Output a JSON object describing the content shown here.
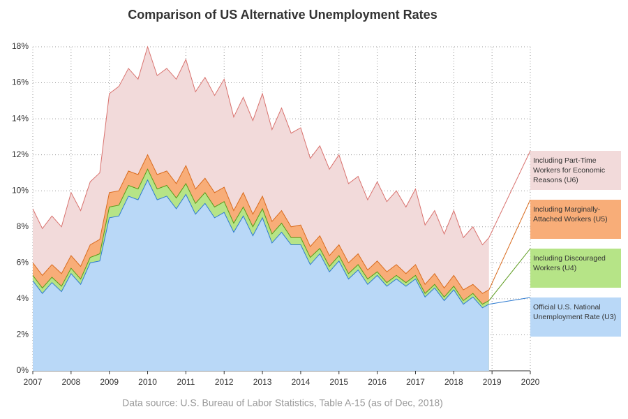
{
  "chart_data": {
    "type": "area",
    "title": "Comparison of US Alternative Unemployment Rates",
    "source": "Data source: U.S. Bureau of Labor Statistics, Table A-15 (as of Dec, 2018)",
    "x": [
      2007,
      2007.25,
      2007.5,
      2007.75,
      2008,
      2008.25,
      2008.5,
      2008.75,
      2009,
      2009.25,
      2009.5,
      2009.75,
      2010,
      2010.25,
      2010.5,
      2010.75,
      2011,
      2011.25,
      2011.5,
      2011.75,
      2012,
      2012.25,
      2012.5,
      2012.75,
      2013,
      2013.25,
      2013.5,
      2013.75,
      2014,
      2014.25,
      2014.5,
      2014.75,
      2015,
      2015.25,
      2015.5,
      2015.75,
      2016,
      2016.25,
      2016.5,
      2016.75,
      2017,
      2017.25,
      2017.5,
      2017.75,
      2018,
      2018.25,
      2018.5,
      2018.75,
      2018.92
    ],
    "series": [
      {
        "name": "Including Part-Time Workers for Economic Reasons (U6)",
        "color": "#f2dada",
        "line": "#d9726e",
        "values": [
          9.0,
          7.9,
          8.6,
          8.0,
          9.9,
          8.9,
          10.5,
          11.0,
          15.4,
          15.8,
          16.8,
          16.2,
          18.0,
          16.4,
          16.8,
          16.2,
          17.3,
          15.5,
          16.3,
          15.3,
          16.2,
          14.1,
          15.2,
          13.9,
          15.4,
          13.4,
          14.6,
          13.2,
          13.5,
          11.8,
          12.5,
          11.2,
          12.0,
          10.4,
          10.8,
          9.5,
          10.5,
          9.4,
          10.0,
          9.1,
          10.1,
          8.1,
          8.9,
          7.6,
          8.9,
          7.4,
          8.0,
          7.0,
          7.4
        ]
      },
      {
        "name": "Including Marginally-Attached Workers (U5)",
        "color": "#f8ad78",
        "line": "#d96b1e",
        "values": [
          6.0,
          5.3,
          5.9,
          5.4,
          6.4,
          5.8,
          7.0,
          7.3,
          9.9,
          10.0,
          11.1,
          10.9,
          12.0,
          10.9,
          11.1,
          10.4,
          11.4,
          10.1,
          10.7,
          9.9,
          10.2,
          8.9,
          9.9,
          8.7,
          9.7,
          8.3,
          8.9,
          8.0,
          8.1,
          6.9,
          7.5,
          6.4,
          7.0,
          6.0,
          6.5,
          5.6,
          6.1,
          5.5,
          5.9,
          5.4,
          5.9,
          4.8,
          5.4,
          4.6,
          5.3,
          4.5,
          4.8,
          4.3,
          4.5
        ]
      },
      {
        "name": "Including Discouraged Workers (U4)",
        "color": "#b6e487",
        "line": "#5a9a1a",
        "values": [
          5.3,
          4.6,
          5.2,
          4.7,
          5.7,
          5.1,
          6.3,
          6.5,
          9.1,
          9.2,
          10.3,
          10.1,
          11.2,
          10.1,
          10.3,
          9.6,
          10.4,
          9.3,
          9.9,
          9.1,
          9.4,
          8.2,
          9.1,
          8.0,
          9.0,
          7.6,
          8.2,
          7.4,
          7.4,
          6.3,
          6.8,
          5.8,
          6.4,
          5.4,
          5.9,
          5.1,
          5.5,
          4.9,
          5.3,
          4.9,
          5.3,
          4.3,
          4.8,
          4.1,
          4.7,
          3.9,
          4.3,
          3.7,
          3.9
        ]
      },
      {
        "name": "Official U.S. National Unemployment Rate (U3)",
        "color": "#b9d8f7",
        "line": "#2e7bd1",
        "values": [
          5.0,
          4.3,
          4.9,
          4.4,
          5.4,
          4.8,
          6.0,
          6.1,
          8.5,
          8.6,
          9.7,
          9.5,
          10.6,
          9.5,
          9.7,
          9.0,
          9.8,
          8.7,
          9.3,
          8.5,
          8.8,
          7.7,
          8.6,
          7.5,
          8.5,
          7.1,
          7.7,
          7.0,
          7.0,
          5.9,
          6.5,
          5.5,
          6.1,
          5.1,
          5.6,
          4.8,
          5.3,
          4.7,
          5.1,
          4.7,
          5.1,
          4.1,
          4.6,
          3.9,
          4.5,
          3.7,
          4.1,
          3.5,
          3.7
        ]
      }
    ],
    "xlim": [
      2007,
      2020
    ],
    "xticks": [
      2007,
      2008,
      2009,
      2010,
      2011,
      2012,
      2013,
      2014,
      2015,
      2016,
      2017,
      2018,
      2019,
      2020
    ],
    "ylim": [
      0,
      18
    ],
    "yticks": [
      {
        "value": 0,
        "label": "0%"
      },
      {
        "value": 2,
        "label": "2%"
      },
      {
        "value": 4,
        "label": "4%"
      },
      {
        "value": 6,
        "label": "6%"
      },
      {
        "value": 8,
        "label": "8%"
      },
      {
        "value": 10,
        "label": "10%"
      },
      {
        "value": 12,
        "label": "12%"
      },
      {
        "value": 14,
        "label": "14%"
      },
      {
        "value": 16,
        "label": "16%"
      },
      {
        "value": 18,
        "label": "18%"
      }
    ],
    "grid": true
  }
}
